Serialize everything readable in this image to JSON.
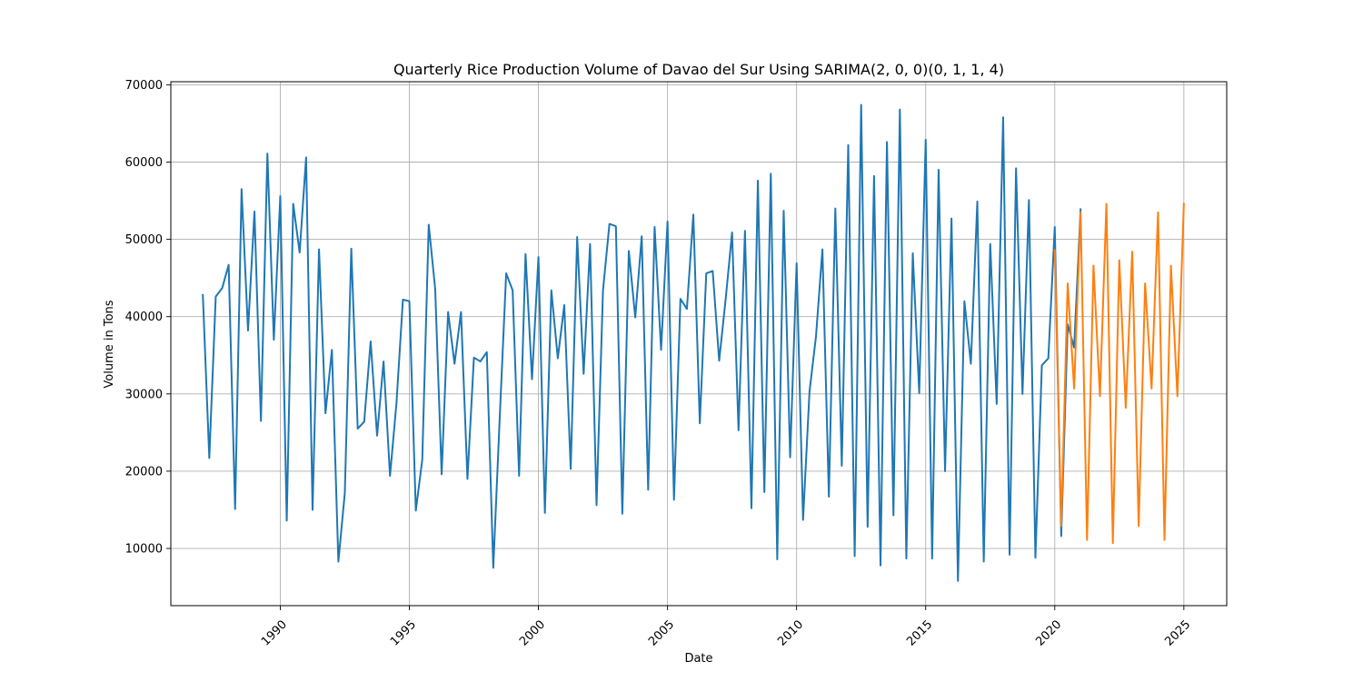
{
  "chart_data": {
    "type": "line",
    "title": "Quarterly Rice Production Volume of Davao del Sur Using SARIMA(2, 0, 0)(0, 1, 1, 4)",
    "xlabel": "Date",
    "ylabel": "Volume in Tons",
    "xlim": [
      1985.76,
      2026.66
    ],
    "ylim": [
      2600,
      70400
    ],
    "x_ticks": [
      1990,
      1995,
      2000,
      2005,
      2010,
      2015,
      2020,
      2025
    ],
    "y_ticks": [
      10000,
      20000,
      30000,
      40000,
      50000,
      60000,
      70000
    ],
    "grid": true,
    "legend": "none",
    "series": [
      {
        "color": "#1f77b4",
        "x_start": 1987.0,
        "x_step": 0.25,
        "values": [
          42800,
          21700,
          42600,
          43700,
          46700,
          15100,
          56500,
          38200,
          53600,
          26500,
          61100,
          37000,
          55600,
          13600,
          54600,
          48300,
          60600,
          15000,
          48700,
          27500,
          35700,
          8300,
          17200,
          48800,
          25500,
          26400,
          36800,
          24600,
          34200,
          19400,
          28800,
          42200,
          42000,
          14900,
          21500,
          51900,
          43600,
          19600,
          40600,
          33900,
          40600,
          19000,
          34700,
          34200,
          35400,
          7500,
          26900,
          45600,
          43400,
          19400,
          48100,
          31900,
          47700,
          14600,
          43400,
          34600,
          41500,
          20300,
          50300,
          32600,
          49400,
          15600,
          43400,
          52000,
          51700,
          14500,
          48500,
          39900,
          50400,
          17600,
          51600,
          35700,
          52300,
          16300,
          42300,
          41000,
          53200,
          26200,
          45600,
          45900,
          34300,
          42200,
          50900,
          25300,
          51100,
          15200,
          57600,
          17300,
          58500,
          8600,
          53700,
          21800,
          46900,
          13700,
          30300,
          37400,
          48700,
          16700,
          54000,
          20700,
          62200,
          9000,
          67400,
          12800,
          58200,
          7800,
          62600,
          14300,
          66800,
          8700,
          48200,
          30100,
          62900,
          8700,
          59000,
          20000,
          52700,
          5800,
          42000,
          33900,
          54900,
          8300,
          49400,
          28700,
          65800,
          9200,
          59200,
          30000,
          55100,
          8800,
          33700,
          34600,
          51600,
          11600,
          39000,
          36000,
          53900
        ]
      },
      {
        "color": "#ff7f0e",
        "x_start": 2020.0,
        "x_step": 0.25,
        "values": [
          48600,
          12900,
          44300,
          30700,
          53500,
          11100,
          46600,
          29700,
          54600,
          10700,
          47300,
          28200,
          48400,
          12900,
          44300,
          30700,
          53500,
          11100,
          46600,
          29700,
          54600
        ]
      }
    ]
  }
}
